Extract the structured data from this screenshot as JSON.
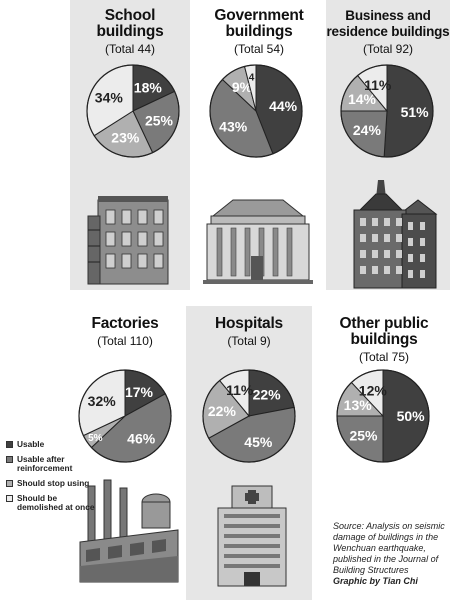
{
  "colors": {
    "usable": "#404040",
    "reinforce": "#7a7a7a",
    "stop": "#b0b0b0",
    "demolish": "#ececec"
  },
  "chart_data": [
    {
      "type": "pie",
      "title": "School buildings",
      "subtitle": "(Total 44)",
      "slices": [
        {
          "category": "Usable",
          "value": 18
        },
        {
          "category": "Usable after reinforcement",
          "value": 25
        },
        {
          "category": "Should stop using",
          "value": 23
        },
        {
          "category": "Should be demolished at once",
          "value": 34
        }
      ],
      "labels": [
        "18%",
        "25%",
        "23%",
        "34%"
      ]
    },
    {
      "type": "pie",
      "title": "Government buildings",
      "subtitle": "(Total 54)",
      "slices": [
        {
          "category": "Usable",
          "value": 44
        },
        {
          "category": "Usable after reinforcement",
          "value": 43
        },
        {
          "category": "Should stop using",
          "value": 9
        },
        {
          "category": "Should be demolished at once",
          "value": 4
        }
      ],
      "labels": [
        "44%",
        "43%",
        "9%",
        "4"
      ]
    },
    {
      "type": "pie",
      "title": "Business and residence buildings",
      "subtitle": "(Total 92)",
      "slices": [
        {
          "category": "Usable",
          "value": 51
        },
        {
          "category": "Usable after reinforcement",
          "value": 24
        },
        {
          "category": "Should stop using",
          "value": 14
        },
        {
          "category": "Should be demolished at once",
          "value": 11
        }
      ],
      "labels": [
        "51%",
        "24%",
        "14%",
        "11%"
      ]
    },
    {
      "type": "pie",
      "title": "Factories",
      "subtitle": "(Total 110)",
      "slices": [
        {
          "category": "Usable",
          "value": 17
        },
        {
          "category": "Usable after reinforcement",
          "value": 46
        },
        {
          "category": "Should stop using",
          "value": 5
        },
        {
          "category": "Should be demolished at once",
          "value": 32
        }
      ],
      "labels": [
        "17%",
        "46%",
        "5%",
        "32%"
      ]
    },
    {
      "type": "pie",
      "title": "Hospitals",
      "subtitle": "(Total 9)",
      "slices": [
        {
          "category": "Usable",
          "value": 22
        },
        {
          "category": "Usable after reinforcement",
          "value": 45
        },
        {
          "category": "Should stop using",
          "value": 22
        },
        {
          "category": "Should be demolished at once",
          "value": 11
        }
      ],
      "labels": [
        "22%",
        "45%",
        "22%",
        "11%"
      ]
    },
    {
      "type": "pie",
      "title": "Other public buildings",
      "subtitle": "(Total 75)",
      "slices": [
        {
          "category": "Usable",
          "value": 50
        },
        {
          "category": "Usable after reinforcement",
          "value": 25
        },
        {
          "category": "Should stop using",
          "value": 13
        },
        {
          "category": "Should be demolished at once",
          "value": 12
        }
      ],
      "labels": [
        "50%",
        "25%",
        "13%",
        "12%"
      ]
    }
  ],
  "chart_text": [
    {
      "title_lines": [
        "School",
        "buildings"
      ],
      "total": "(Total 44)"
    },
    {
      "title_lines": [
        "Government",
        "buildings"
      ],
      "total": "(Total 54)"
    },
    {
      "title_lines": [
        "Business and",
        "residence buildings"
      ],
      "total": "(Total 92)"
    },
    {
      "title_lines": [
        "Factories"
      ],
      "total": "(Total 110)"
    },
    {
      "title_lines": [
        "Hospitals"
      ],
      "total": "(Total 9)"
    },
    {
      "title_lines": [
        "Other public",
        "buildings"
      ],
      "total": "(Total 75)"
    }
  ],
  "legend": [
    {
      "label": "Usable",
      "color": "#404040"
    },
    {
      "label": "Usable after reinforcement",
      "color": "#7a7a7a"
    },
    {
      "label": "Should stop using",
      "color": "#b0b0b0"
    },
    {
      "label": "Should be demolished at once",
      "color": "#ececec"
    }
  ],
  "source": {
    "text": "Source: Analysis on seismic damage of buildings in the Wenchuan earthquake, published in the Journal of Building Structures",
    "credit": "Graphic by Tian Chi"
  },
  "illustrations": [
    "school-building-icon",
    "government-building-icon",
    "business-tower-icon",
    "factory-icon",
    "hospital-icon"
  ]
}
